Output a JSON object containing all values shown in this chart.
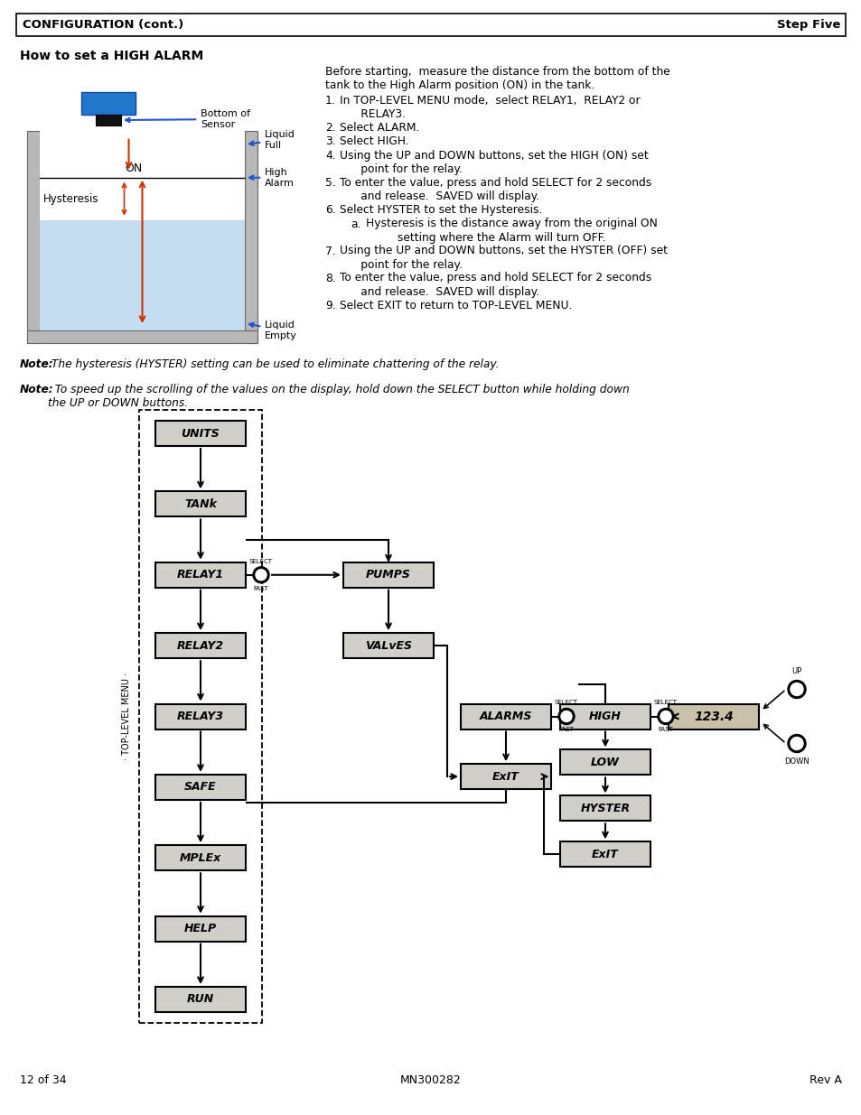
{
  "header_left": "CONFIGURATION (cont.)",
  "header_right": "Step Five",
  "section_title": "How to set a HIGH ALARM",
  "para0": "Before starting,  measure the distance from the bottom of the\ntank to the High Alarm position (ON) in the tank.",
  "items": [
    "In TOP-LEVEL MENU mode,  select RELAY1,  RELAY2 or\n      RELAY3.",
    "Select ALARM.",
    "Select HIGH.",
    "Using the UP and DOWN buttons, set the HIGH (ON) set\n      point for the relay.",
    "To enter the value, press and hold SELECT for 2 seconds\n      and release.  SAVED will display.",
    "Select HYSTER to set the Hysteresis.",
    "Using the UP and DOWN buttons, set the HYSTER (OFF) set\n      point for the relay.",
    "To enter the value, press and hold SELECT for 2 seconds\n      and release.  SAVED will display.",
    "Select EXIT to return to TOP-LEVEL MENU."
  ],
  "item6a": "Hysteresis is the distance away from the original ON\n         setting where the Alarm will turn OFF.",
  "note1_bold": "Note:",
  "note1_rest": " The hysteresis (HYSTER) setting can be used to eliminate chattering of the relay.",
  "note2_bold": "Note:",
  "note2_rest": "  To speed up the scrolling of the values on the display, hold down the SELECT button while holding down\nthe UP or DOWN buttons.",
  "footer_left": "12 of 34",
  "footer_center": "MN300282",
  "footer_right": "Rev A",
  "menu_col1": [
    "UNITS",
    "TANk",
    "RELAY1",
    "RELAY2",
    "RELAY3",
    "SAFE",
    "MPLEx",
    "HELP",
    "RUN"
  ],
  "menu_col2": [
    "PUMPS",
    "VALvES"
  ],
  "menu_col3": [
    "ALARMS",
    "ExIT"
  ],
  "menu_col4": [
    "HIGH",
    "LOW",
    "HYSTER",
    "ExIT"
  ],
  "menu_val": "123.4",
  "bg": "#ffffff",
  "box_fill": "#d0cfc9",
  "box_edge": "#000000",
  "val_fill": "#c8c0a8",
  "arrow_col": "#000000",
  "red_arrow": "#cc3300",
  "blue_arrow": "#2255cc",
  "tank_wall": "#b8b8b8",
  "water_fill": "#c5ddf0",
  "sensor_blue": "#2277cc",
  "sensor_black": "#111111"
}
